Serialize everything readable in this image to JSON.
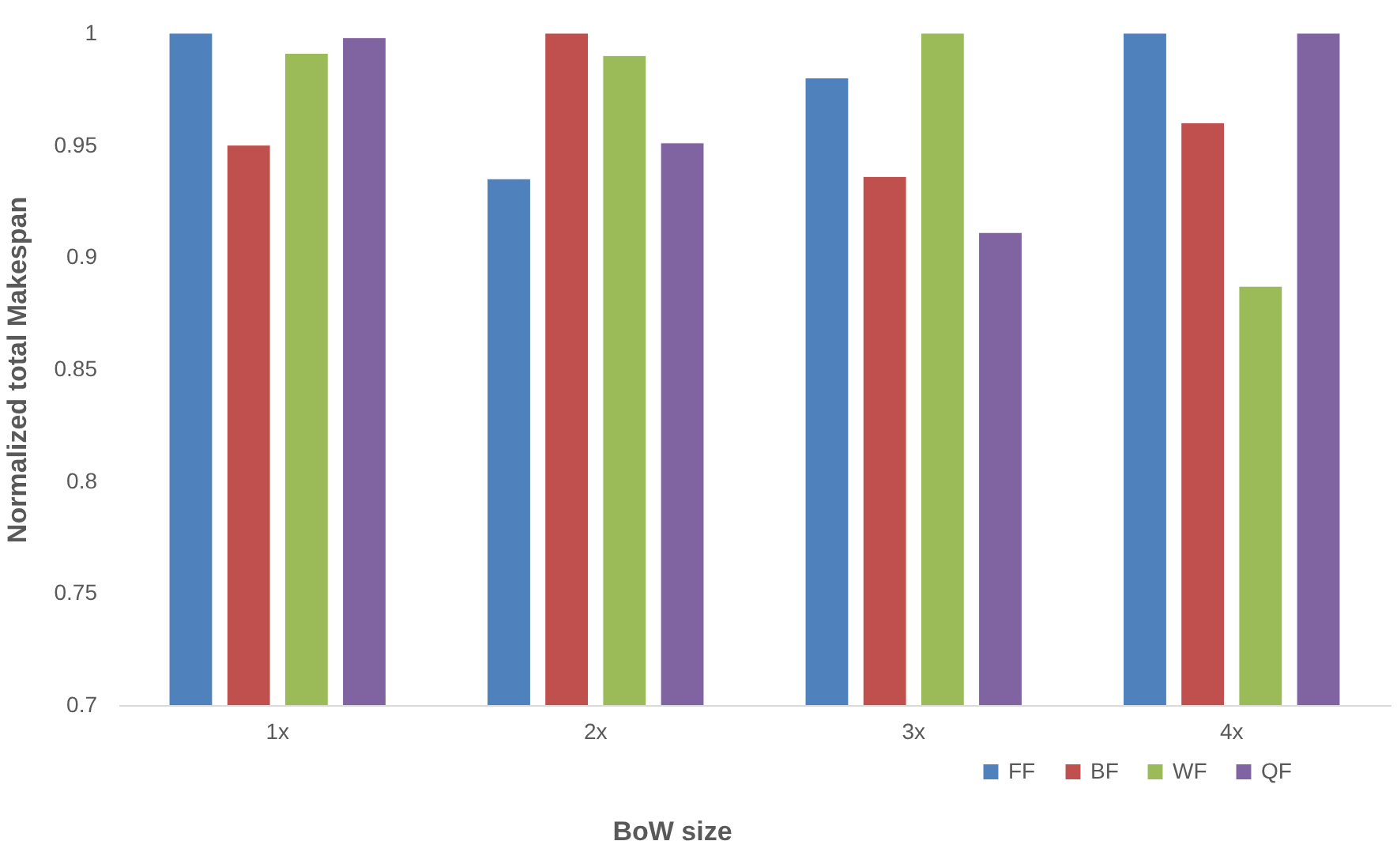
{
  "chart_data": {
    "type": "bar",
    "xlabel": "BoW size",
    "ylabel": "Normalized total Makespan",
    "categories": [
      "1x",
      "2x",
      "3x",
      "4x"
    ],
    "series": [
      {
        "name": "FF",
        "color": "#4f81bd",
        "values": [
          1.0,
          0.935,
          0.98,
          1.0
        ]
      },
      {
        "name": "BF",
        "color": "#c0504d",
        "values": [
          0.95,
          1.0,
          0.936,
          0.96
        ]
      },
      {
        "name": "WF",
        "color": "#9bbb59",
        "values": [
          0.991,
          0.99,
          1.0,
          0.887
        ]
      },
      {
        "name": "QF",
        "color": "#8064a2",
        "values": [
          0.998,
          0.951,
          0.911,
          1.0
        ]
      }
    ],
    "ylim": [
      0.7,
      1
    ],
    "yticks": [
      0.7,
      0.75,
      0.8,
      0.85,
      0.9,
      0.95,
      1
    ],
    "grid": false,
    "legend": "bottom"
  }
}
